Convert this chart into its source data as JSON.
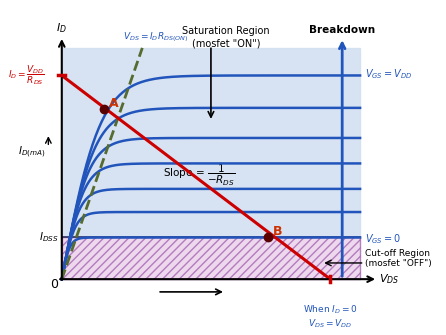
{
  "bg_color": "#ffffff",
  "curve_color": "#2255bb",
  "red_line_color": "#cc0000",
  "green_dashed_color": "#556b2f",
  "saturation_fill": "#d0dff0",
  "cutoff_hatch_fc": "#e8c8e8",
  "cutoff_hatch_ec": "#9955aa",
  "xlim": [
    0,
    10
  ],
  "ylim": [
    0,
    10
  ],
  "isat_levels": [
    8.8,
    7.4,
    6.1,
    5.0,
    3.9,
    2.9,
    1.8
  ],
  "knee_x": [
    1.3,
    1.1,
    0.9,
    0.74,
    0.58,
    0.44,
    0.27
  ],
  "load_line_y0": 8.8,
  "load_line_x1": 9.0,
  "point_A": [
    1.4,
    7.35
  ],
  "point_B": [
    6.9,
    1.8
  ],
  "breakdown_x": 9.4,
  "idss_y": 1.8,
  "green_x_end": 2.7,
  "green_slope": 3.7
}
